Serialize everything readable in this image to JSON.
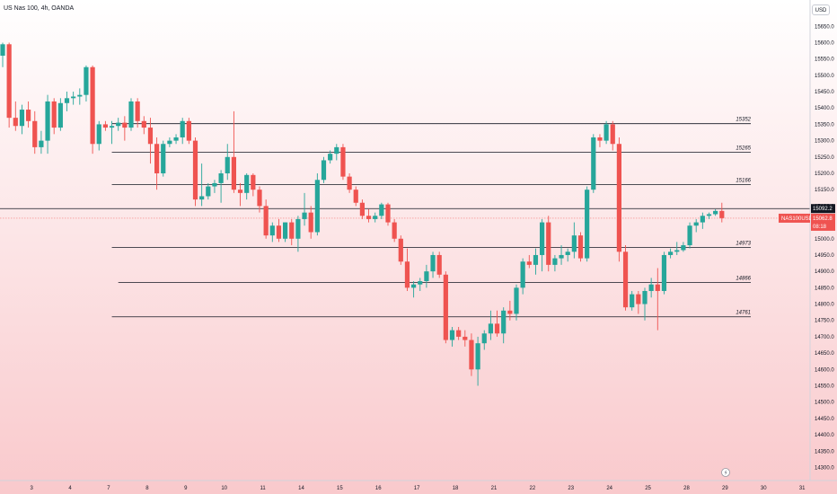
{
  "header": {
    "symbol_title": "US Nas 100, 4h, OANDA",
    "currency": "USD"
  },
  "icons": {
    "time_zone": "lightning-icon"
  },
  "colors": {
    "up": "#26a69a",
    "down": "#ef5350",
    "level_line": "#131722",
    "price_line": "#ef5350",
    "bg_top": "#ffffff",
    "bg_bottom": "#f9c9cc"
  },
  "chart_data": {
    "type": "candlestick",
    "instrument": "US Nas 100",
    "timeframe": "4h",
    "source": "OANDA",
    "ylim": [
      14260,
      15670
    ],
    "y_ticks": [
      "15650.0",
      "15600.0",
      "15550.0",
      "15500.0",
      "15450.0",
      "15400.0",
      "15350.0",
      "15300.0",
      "15250.0",
      "15200.0",
      "15150.0",
      "15100.0",
      "15050.0",
      "15000.0",
      "14950.0",
      "14900.0",
      "14850.0",
      "14800.0",
      "14750.0",
      "14700.0",
      "14650.0",
      "14600.0",
      "14550.0",
      "14500.0",
      "14450.0",
      "14400.0",
      "14350.0",
      "14300.0"
    ],
    "x_ticks": [
      "3",
      "4",
      "7",
      "8",
      "9",
      "10",
      "11",
      "14",
      "15",
      "16",
      "17",
      "18",
      "21",
      "22",
      "23",
      "24",
      "25",
      "28",
      "29",
      "30",
      "31"
    ],
    "x_tick_bars": [
      4.5,
      10.5,
      16.5,
      22.5,
      28.5,
      34.5,
      40.5,
      46.5,
      52.5,
      58.5,
      64.5,
      70.5,
      76.5,
      82.5,
      88.5,
      94.5,
      100.5,
      106.5,
      112.5,
      118.5,
      124.5
    ],
    "levels": [
      {
        "label": "15352",
        "value": 15352,
        "start_bar": 17
      },
      {
        "label": "15265",
        "value": 15265,
        "start_bar": 17
      },
      {
        "label": "15166",
        "value": 15166,
        "start_bar": 17
      },
      {
        "label": "14973",
        "value": 14973,
        "start_bar": 17
      },
      {
        "label": "14866",
        "value": 14866,
        "start_bar": 18
      },
      {
        "label": "14761",
        "value": 14761,
        "start_bar": 17
      }
    ],
    "marker_line": {
      "value": 15092.2,
      "label": "15092.2"
    },
    "last_price": {
      "symbol": "NAS100USD",
      "value": 15062.8,
      "label": "15062.8",
      "countdown": "08:18"
    },
    "candles": [
      {
        "o": 15560,
        "h": 15600,
        "l": 15525,
        "c": 15595
      },
      {
        "o": 15595,
        "h": 15600,
        "l": 15340,
        "c": 15370
      },
      {
        "o": 15370,
        "h": 15420,
        "l": 15330,
        "c": 15345
      },
      {
        "o": 15345,
        "h": 15410,
        "l": 15320,
        "c": 15395
      },
      {
        "o": 15395,
        "h": 15420,
        "l": 15340,
        "c": 15360
      },
      {
        "o": 15360,
        "h": 15390,
        "l": 15260,
        "c": 15280
      },
      {
        "o": 15280,
        "h": 15330,
        "l": 15260,
        "c": 15300
      },
      {
        "o": 15300,
        "h": 15440,
        "l": 15260,
        "c": 15420
      },
      {
        "o": 15420,
        "h": 15430,
        "l": 15320,
        "c": 15340
      },
      {
        "o": 15340,
        "h": 15430,
        "l": 15330,
        "c": 15415
      },
      {
        "o": 15415,
        "h": 15450,
        "l": 15390,
        "c": 15430
      },
      {
        "o": 15430,
        "h": 15450,
        "l": 15410,
        "c": 15435
      },
      {
        "o": 15435,
        "h": 15460,
        "l": 15410,
        "c": 15440
      },
      {
        "o": 15440,
        "h": 15530,
        "l": 15420,
        "c": 15525
      },
      {
        "o": 15525,
        "h": 15530,
        "l": 15260,
        "c": 15290
      },
      {
        "o": 15290,
        "h": 15360,
        "l": 15270,
        "c": 15350
      },
      {
        "o": 15350,
        "h": 15360,
        "l": 15330,
        "c": 15340
      },
      {
        "o": 15340,
        "h": 15360,
        "l": 15290,
        "c": 15345
      },
      {
        "o": 15345,
        "h": 15370,
        "l": 15330,
        "c": 15355
      },
      {
        "o": 15355,
        "h": 15375,
        "l": 15300,
        "c": 15340
      },
      {
        "o": 15340,
        "h": 15430,
        "l": 15330,
        "c": 15420
      },
      {
        "o": 15420,
        "h": 15430,
        "l": 15340,
        "c": 15360
      },
      {
        "o": 15360,
        "h": 15375,
        "l": 15320,
        "c": 15340
      },
      {
        "o": 15340,
        "h": 15370,
        "l": 15230,
        "c": 15290
      },
      {
        "o": 15290,
        "h": 15310,
        "l": 15150,
        "c": 15200
      },
      {
        "o": 15200,
        "h": 15300,
        "l": 15190,
        "c": 15290
      },
      {
        "o": 15290,
        "h": 15310,
        "l": 15280,
        "c": 15300
      },
      {
        "o": 15300,
        "h": 15320,
        "l": 15290,
        "c": 15310
      },
      {
        "o": 15310,
        "h": 15370,
        "l": 15290,
        "c": 15360
      },
      {
        "o": 15360,
        "h": 15370,
        "l": 15290,
        "c": 15300
      },
      {
        "o": 15300,
        "h": 15310,
        "l": 15100,
        "c": 15120
      },
      {
        "o": 15120,
        "h": 15230,
        "l": 15100,
        "c": 15130
      },
      {
        "o": 15130,
        "h": 15170,
        "l": 15120,
        "c": 15160
      },
      {
        "o": 15160,
        "h": 15180,
        "l": 15140,
        "c": 15170
      },
      {
        "o": 15170,
        "h": 15210,
        "l": 15110,
        "c": 15200
      },
      {
        "o": 15200,
        "h": 15290,
        "l": 15180,
        "c": 15250
      },
      {
        "o": 15250,
        "h": 15390,
        "l": 15140,
        "c": 15150
      },
      {
        "o": 15150,
        "h": 15170,
        "l": 15100,
        "c": 15140
      },
      {
        "o": 15140,
        "h": 15200,
        "l": 15120,
        "c": 15195
      },
      {
        "o": 15195,
        "h": 15200,
        "l": 15130,
        "c": 15150
      },
      {
        "o": 15150,
        "h": 15160,
        "l": 15080,
        "c": 15100
      },
      {
        "o": 15100,
        "h": 15120,
        "l": 15000,
        "c": 15010
      },
      {
        "o": 15010,
        "h": 15050,
        "l": 14990,
        "c": 15040
      },
      {
        "o": 15040,
        "h": 15060,
        "l": 14990,
        "c": 15000
      },
      {
        "o": 15000,
        "h": 15050,
        "l": 14990,
        "c": 15050
      },
      {
        "o": 15050,
        "h": 15060,
        "l": 14980,
        "c": 15000
      },
      {
        "o": 15000,
        "h": 15070,
        "l": 14960,
        "c": 15060
      },
      {
        "o": 15060,
        "h": 15140,
        "l": 15040,
        "c": 15080
      },
      {
        "o": 15080,
        "h": 15100,
        "l": 15000,
        "c": 15020
      },
      {
        "o": 15020,
        "h": 15200,
        "l": 15010,
        "c": 15180
      },
      {
        "o": 15180,
        "h": 15250,
        "l": 15170,
        "c": 15240
      },
      {
        "o": 15240,
        "h": 15270,
        "l": 15230,
        "c": 15260
      },
      {
        "o": 15260,
        "h": 15290,
        "l": 15240,
        "c": 15280
      },
      {
        "o": 15280,
        "h": 15290,
        "l": 15180,
        "c": 15190
      },
      {
        "o": 15190,
        "h": 15200,
        "l": 15140,
        "c": 15150
      },
      {
        "o": 15150,
        "h": 15160,
        "l": 15100,
        "c": 15110
      },
      {
        "o": 15110,
        "h": 15120,
        "l": 15060,
        "c": 15070
      },
      {
        "o": 15070,
        "h": 15090,
        "l": 15050,
        "c": 15060
      },
      {
        "o": 15060,
        "h": 15080,
        "l": 15050,
        "c": 15070
      },
      {
        "o": 15070,
        "h": 15110,
        "l": 15060,
        "c": 15105
      },
      {
        "o": 15105,
        "h": 15110,
        "l": 15040,
        "c": 15050
      },
      {
        "o": 15050,
        "h": 15060,
        "l": 14990,
        "c": 15000
      },
      {
        "o": 15000,
        "h": 15010,
        "l": 14920,
        "c": 14930
      },
      {
        "o": 14930,
        "h": 14970,
        "l": 14840,
        "c": 14850
      },
      {
        "o": 14850,
        "h": 14870,
        "l": 14820,
        "c": 14860
      },
      {
        "o": 14860,
        "h": 14880,
        "l": 14840,
        "c": 14870
      },
      {
        "o": 14870,
        "h": 14920,
        "l": 14850,
        "c": 14900
      },
      {
        "o": 14900,
        "h": 14960,
        "l": 14880,
        "c": 14950
      },
      {
        "o": 14950,
        "h": 14960,
        "l": 14880,
        "c": 14890
      },
      {
        "o": 14890,
        "h": 14900,
        "l": 14680,
        "c": 14690
      },
      {
        "o": 14690,
        "h": 14730,
        "l": 14670,
        "c": 14720
      },
      {
        "o": 14720,
        "h": 14730,
        "l": 14690,
        "c": 14700
      },
      {
        "o": 14700,
        "h": 14720,
        "l": 14670,
        "c": 14690
      },
      {
        "o": 14690,
        "h": 14710,
        "l": 14580,
        "c": 14600
      },
      {
        "o": 14600,
        "h": 14700,
        "l": 14550,
        "c": 14680
      },
      {
        "o": 14680,
        "h": 14720,
        "l": 14660,
        "c": 14710
      },
      {
        "o": 14710,
        "h": 14780,
        "l": 14690,
        "c": 14740
      },
      {
        "o": 14740,
        "h": 14780,
        "l": 14700,
        "c": 14710
      },
      {
        "o": 14710,
        "h": 14790,
        "l": 14680,
        "c": 14780
      },
      {
        "o": 14780,
        "h": 14810,
        "l": 14750,
        "c": 14770
      },
      {
        "o": 14770,
        "h": 14860,
        "l": 14750,
        "c": 14850
      },
      {
        "o": 14850,
        "h": 14940,
        "l": 14830,
        "c": 14930
      },
      {
        "o": 14930,
        "h": 14950,
        "l": 14910,
        "c": 14920
      },
      {
        "o": 14920,
        "h": 14970,
        "l": 14890,
        "c": 14950
      },
      {
        "o": 14950,
        "h": 15060,
        "l": 14900,
        "c": 15050
      },
      {
        "o": 15050,
        "h": 15070,
        "l": 14900,
        "c": 14920
      },
      {
        "o": 14920,
        "h": 14950,
        "l": 14900,
        "c": 14940
      },
      {
        "o": 14940,
        "h": 14980,
        "l": 14920,
        "c": 14950
      },
      {
        "o": 14950,
        "h": 14970,
        "l": 14930,
        "c": 14960
      },
      {
        "o": 14960,
        "h": 15050,
        "l": 14940,
        "c": 15010
      },
      {
        "o": 15010,
        "h": 15020,
        "l": 14930,
        "c": 14940
      },
      {
        "o": 14940,
        "h": 15160,
        "l": 14930,
        "c": 15150
      },
      {
        "o": 15150,
        "h": 15320,
        "l": 15140,
        "c": 15310
      },
      {
        "o": 15310,
        "h": 15320,
        "l": 15280,
        "c": 15300
      },
      {
        "o": 15300,
        "h": 15360,
        "l": 15290,
        "c": 15350
      },
      {
        "o": 15350,
        "h": 15360,
        "l": 15270,
        "c": 15290
      },
      {
        "o": 15290,
        "h": 15310,
        "l": 14930,
        "c": 14960
      },
      {
        "o": 14960,
        "h": 14980,
        "l": 14780,
        "c": 14790
      },
      {
        "o": 14790,
        "h": 14840,
        "l": 14780,
        "c": 14830
      },
      {
        "o": 14830,
        "h": 14840,
        "l": 14770,
        "c": 14800
      },
      {
        "o": 14800,
        "h": 14850,
        "l": 14750,
        "c": 14840
      },
      {
        "o": 14840,
        "h": 14880,
        "l": 14820,
        "c": 14860
      },
      {
        "o": 14860,
        "h": 14910,
        "l": 14720,
        "c": 14840
      },
      {
        "o": 14840,
        "h": 14960,
        "l": 14830,
        "c": 14950
      },
      {
        "o": 14950,
        "h": 14970,
        "l": 14940,
        "c": 14960
      },
      {
        "o": 14960,
        "h": 14990,
        "l": 14950,
        "c": 14965
      },
      {
        "o": 14965,
        "h": 14990,
        "l": 14960,
        "c": 14980
      },
      {
        "o": 14980,
        "h": 15050,
        "l": 14970,
        "c": 15040
      },
      {
        "o": 15040,
        "h": 15060,
        "l": 15020,
        "c": 15050
      },
      {
        "o": 15050,
        "h": 15080,
        "l": 15030,
        "c": 15070
      },
      {
        "o": 15070,
        "h": 15080,
        "l": 15060,
        "c": 15075
      },
      {
        "o": 15075,
        "h": 15090,
        "l": 15070,
        "c": 15085
      },
      {
        "o": 15085,
        "h": 15110,
        "l": 15050,
        "c": 15063
      }
    ]
  }
}
